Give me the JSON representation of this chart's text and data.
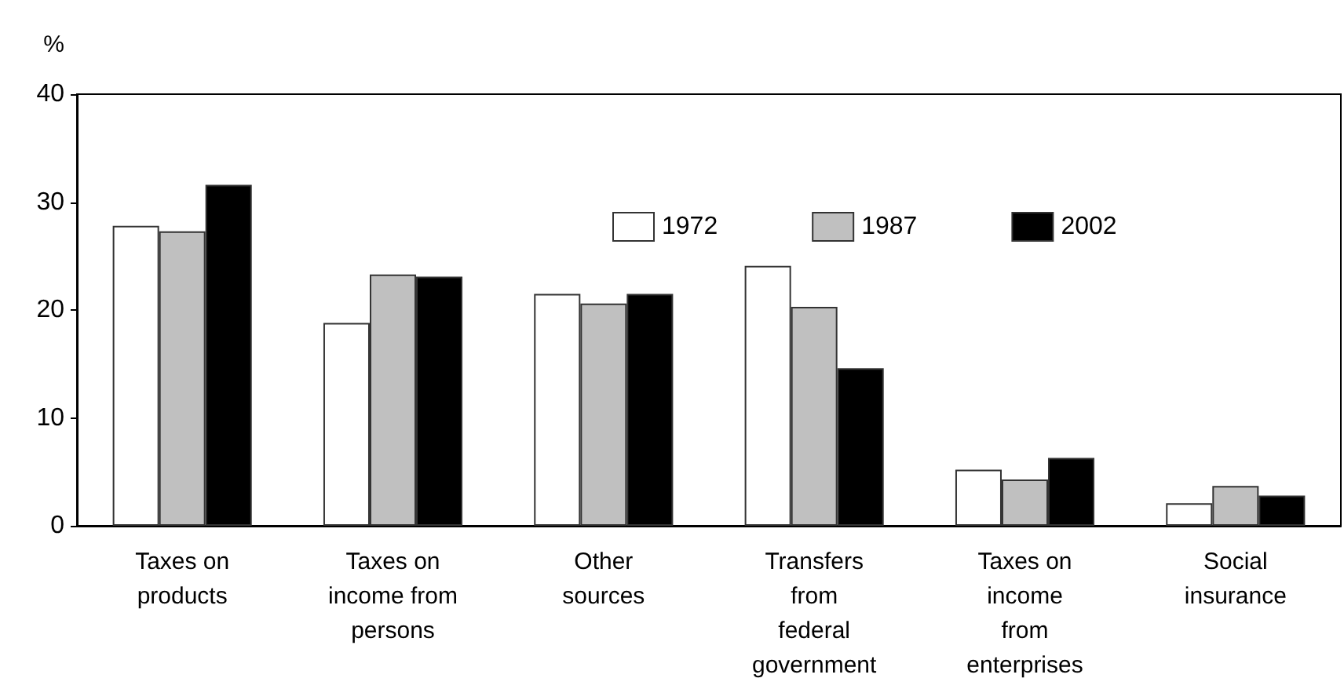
{
  "chart_data": {
    "type": "bar",
    "ylabel": "%",
    "categories": [
      "Taxes on\nproducts",
      "Taxes on\nincome from\npersons",
      "Other\nsources",
      "Transfers\nfrom\nfederal\ngovernment",
      "Taxes on\nincome\nfrom\nenterprises",
      "Social\ninsurance"
    ],
    "series": [
      {
        "name": "1972",
        "color": "#ffffff",
        "values": [
          27.8,
          18.8,
          21.5,
          24.1,
          5.2,
          2.1
        ]
      },
      {
        "name": "1987",
        "color": "#c0c0c0",
        "values": [
          27.3,
          23.3,
          20.6,
          20.3,
          4.3,
          3.7
        ]
      },
      {
        "name": "2002",
        "color": "#000000",
        "values": [
          31.6,
          23.1,
          21.5,
          14.6,
          6.3,
          2.8
        ]
      }
    ],
    "ylim": [
      0,
      40
    ],
    "yticks": [
      0,
      10,
      20,
      30,
      40
    ],
    "grid": false,
    "legend": "top"
  }
}
